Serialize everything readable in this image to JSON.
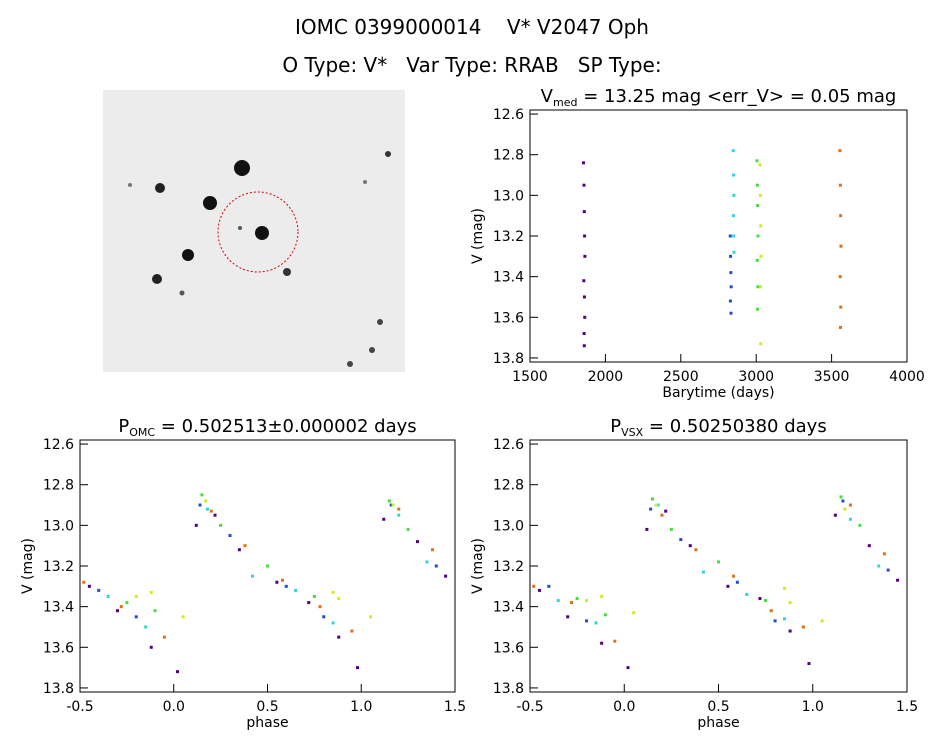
{
  "header": {
    "title": "IOMC 0399000014    V* V2047 Oph",
    "subtitle": "O Type: V*   Var Type: RRAB   SP Type:"
  },
  "chart_data": [
    {
      "type": "scatter",
      "title": "V",
      "title_sub": "med",
      "title_rest": " = 13.25 mag <err_V> = 0.05 mag",
      "x_label": "Barytime (days)",
      "y_label": "V (mag)",
      "xlim": [
        1500,
        4000
      ],
      "xticks": [
        1500,
        2000,
        2500,
        3000,
        3500,
        4000
      ],
      "ylim": [
        12.58,
        13.82
      ],
      "yticks": [
        12.6,
        12.8,
        {
          "value": 13,
          "label": "13.0"
        },
        13.2,
        13.4,
        13.6,
        13.8
      ],
      "series": [
        {
          "color": "#55007f",
          "x": [
            1855,
            1858,
            1860,
            1862,
            1864,
            1857,
            1861,
            1863,
            1859,
            1860
          ],
          "values": [
            12.84,
            12.95,
            13.08,
            13.2,
            13.3,
            13.42,
            13.5,
            13.6,
            13.68,
            13.74
          ]
        },
        {
          "color": "#1e4fd0",
          "x": [
            2828,
            2830,
            2832,
            2834,
            2829,
            2833
          ],
          "values": [
            13.2,
            13.3,
            13.38,
            13.45,
            13.52,
            13.58
          ]
        },
        {
          "color": "#2fd6e0",
          "x": [
            2848,
            2850,
            2852,
            2849,
            2851,
            2853
          ],
          "values": [
            12.78,
            12.9,
            13.0,
            13.1,
            13.2,
            13.28
          ]
        },
        {
          "color": "#44e03a",
          "x": [
            3005,
            3008,
            3010,
            3012,
            3007,
            3011,
            3009
          ],
          "values": [
            12.83,
            12.95,
            13.05,
            13.2,
            13.32,
            13.45,
            13.56
          ]
        },
        {
          "color": "#c8f020",
          "x": [
            3025,
            3028,
            3030,
            3032,
            3029,
            3030
          ],
          "values": [
            12.85,
            13.0,
            13.15,
            13.3,
            13.45,
            13.73
          ]
        },
        {
          "color": "#e07010",
          "x": [
            3555,
            3558,
            3560,
            3562,
            3557,
            3561,
            3559
          ],
          "values": [
            12.78,
            12.95,
            13.1,
            13.25,
            13.4,
            13.55,
            13.65
          ]
        }
      ]
    },
    {
      "type": "scatter",
      "title": "P",
      "title_sub": "OMC",
      "title_rest": " = 0.502513±0.000002 days",
      "x_label": "phase",
      "y_label": "V (mag)",
      "xlim": [
        -0.5,
        1.5
      ],
      "xticks": [
        -0.5,
        {
          "value": 0,
          "label": "0.0"
        },
        0.5,
        {
          "value": 1,
          "label": "1.0"
        },
        1.5
      ],
      "ylim": [
        12.58,
        13.82
      ],
      "yticks": [
        12.6,
        12.8,
        {
          "value": 13,
          "label": "13.0"
        },
        13.2,
        13.4,
        13.6,
        13.8
      ],
      "series": [
        {
          "color": "#55007f",
          "x": [
            -0.45,
            -0.3,
            -0.12,
            0.02,
            0.12,
            0.22,
            0.35,
            0.55,
            0.72,
            0.88,
            0.98,
            1.12,
            1.3,
            1.45
          ],
          "values": [
            13.3,
            13.42,
            13.6,
            13.72,
            13.0,
            12.95,
            13.12,
            13.28,
            13.38,
            13.55,
            13.7,
            12.97,
            13.08,
            13.25
          ]
        },
        {
          "color": "#1e4fd0",
          "x": [
            -0.4,
            -0.2,
            0.14,
            0.3,
            0.6,
            0.8,
            1.16,
            1.4
          ],
          "values": [
            13.32,
            13.45,
            12.9,
            13.05,
            13.3,
            13.45,
            12.9,
            13.2
          ]
        },
        {
          "color": "#2fd6e0",
          "x": [
            -0.35,
            -0.15,
            0.18,
            0.42,
            0.65,
            0.85,
            1.2,
            1.35
          ],
          "values": [
            13.35,
            13.5,
            12.92,
            13.25,
            13.32,
            13.48,
            12.95,
            13.18
          ]
        },
        {
          "color": "#44e03a",
          "x": [
            -0.25,
            -0.1,
            0.15,
            0.25,
            0.5,
            0.75,
            1.15,
            1.25
          ],
          "values": [
            13.38,
            13.42,
            12.85,
            13.0,
            13.2,
            13.35,
            12.88,
            13.02
          ]
        },
        {
          "color": "#c8f020",
          "x": [
            -0.2,
            -0.12,
            0.05,
            0.17,
            0.85,
            0.88,
            1.05,
            1.17
          ],
          "values": [
            13.35,
            13.33,
            13.45,
            12.88,
            13.33,
            13.36,
            13.45,
            12.9
          ]
        },
        {
          "color": "#e07010",
          "x": [
            -0.48,
            -0.28,
            -0.05,
            0.2,
            0.38,
            0.58,
            0.78,
            0.95,
            1.2,
            1.38
          ],
          "values": [
            13.28,
            13.4,
            13.55,
            12.93,
            13.1,
            13.27,
            13.4,
            13.52,
            12.92,
            13.12
          ]
        }
      ]
    },
    {
      "type": "scatter",
      "title": "P",
      "title_sub": "VSX",
      "title_rest": " = 0.50250380 days",
      "x_label": "phase",
      "y_label": "V (mag)",
      "xlim": [
        -0.5,
        1.5
      ],
      "xticks": [
        -0.5,
        {
          "value": 0,
          "label": "0.0"
        },
        0.5,
        {
          "value": 1,
          "label": "1.0"
        },
        1.5
      ],
      "ylim": [
        12.58,
        13.82
      ],
      "yticks": [
        12.6,
        12.8,
        {
          "value": 13,
          "label": "13.0"
        },
        13.2,
        13.4,
        13.6,
        13.8
      ],
      "series": [
        {
          "color": "#55007f",
          "x": [
            -0.45,
            -0.3,
            -0.12,
            0.02,
            0.12,
            0.22,
            0.35,
            0.55,
            0.72,
            0.88,
            0.98,
            1.12,
            1.3,
            1.45
          ],
          "values": [
            13.32,
            13.45,
            13.58,
            13.7,
            13.02,
            12.93,
            13.1,
            13.3,
            13.36,
            13.52,
            13.68,
            12.95,
            13.1,
            13.27
          ]
        },
        {
          "color": "#1e4fd0",
          "x": [
            -0.4,
            -0.2,
            0.14,
            0.3,
            0.6,
            0.8,
            1.16,
            1.4
          ],
          "values": [
            13.3,
            13.47,
            12.92,
            13.07,
            13.28,
            13.47,
            12.88,
            13.22
          ]
        },
        {
          "color": "#2fd6e0",
          "x": [
            -0.35,
            -0.15,
            0.18,
            0.42,
            0.65,
            0.85,
            1.2,
            1.35
          ],
          "values": [
            13.37,
            13.48,
            12.9,
            13.23,
            13.34,
            13.46,
            12.97,
            13.2
          ]
        },
        {
          "color": "#44e03a",
          "x": [
            -0.25,
            -0.1,
            0.15,
            0.25,
            0.5,
            0.75,
            1.15,
            1.25
          ],
          "values": [
            13.36,
            13.44,
            12.87,
            13.02,
            13.18,
            13.37,
            12.86,
            13.0
          ]
        },
        {
          "color": "#c8f020",
          "x": [
            -0.2,
            -0.12,
            0.05,
            0.17,
            0.85,
            0.88,
            1.05,
            1.17
          ],
          "values": [
            13.37,
            13.35,
            13.43,
            12.9,
            13.31,
            13.38,
            13.47,
            12.92
          ]
        },
        {
          "color": "#e07010",
          "x": [
            -0.48,
            -0.28,
            -0.05,
            0.2,
            0.38,
            0.58,
            0.78,
            0.95,
            1.2,
            1.38
          ],
          "values": [
            13.3,
            13.38,
            13.57,
            12.95,
            13.12,
            13.25,
            13.42,
            13.5,
            12.9,
            13.14
          ]
        }
      ]
    }
  ]
}
